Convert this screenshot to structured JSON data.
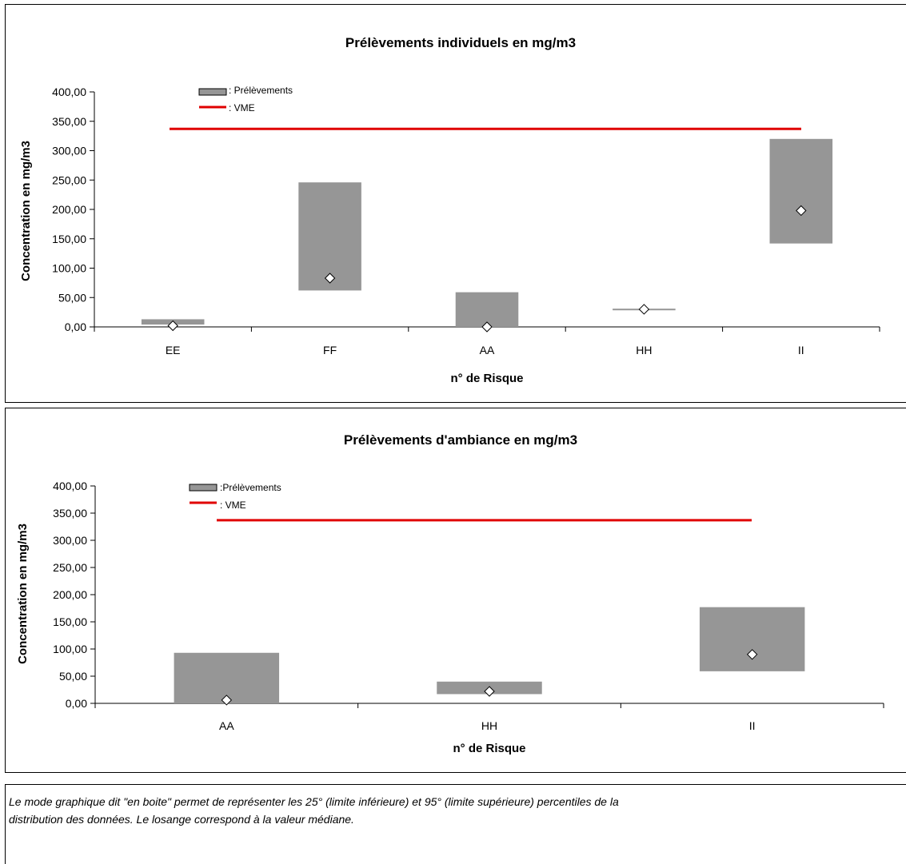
{
  "chart_data": [
    {
      "type": "box",
      "title": "Prélèvements individuels en mg/m3",
      "ylabel": "Concentration en mg/m3",
      "xlabel": "n° de Risque",
      "ylim": [
        0,
        400
      ],
      "yticks": [
        "0,00",
        "50,00",
        "100,00",
        "150,00",
        "200,00",
        "250,00",
        "300,00",
        "350,00",
        "400,00"
      ],
      "categories": [
        "EE",
        "FF",
        "AA",
        "HH",
        "II"
      ],
      "series": [
        {
          "name": ": Prélèvements",
          "low": [
            4,
            62,
            0,
            31,
            142
          ],
          "high": [
            13,
            246,
            59,
            31,
            320
          ],
          "median": [
            2,
            83,
            0,
            30,
            198
          ]
        }
      ],
      "reference": {
        "name": ": VME",
        "value": 337
      },
      "legend": "top-left",
      "colors": {
        "box": "#969696",
        "vme": "#e00000"
      }
    },
    {
      "type": "box",
      "title": "Prélèvements d'ambiance en mg/m3",
      "ylabel": "Concentration en mg/m3",
      "xlabel": "n° de Risque",
      "ylim": [
        0,
        400
      ],
      "yticks": [
        "0,00",
        "50,00",
        "100,00",
        "150,00",
        "200,00",
        "250,00",
        "300,00",
        "350,00",
        "400,00"
      ],
      "categories": [
        "AA",
        "HH",
        "II"
      ],
      "series": [
        {
          "name": ":Prélèvements",
          "low": [
            0,
            17,
            59
          ],
          "high": [
            93,
            40,
            177
          ],
          "median": [
            6,
            22,
            90
          ]
        }
      ],
      "reference": {
        "name": ": VME",
        "value": 337
      },
      "legend": "top-left",
      "colors": {
        "box": "#969696",
        "vme": "#e00000"
      }
    }
  ],
  "note": {
    "line1": "Le mode graphique dit \"en boite\" permet de représenter les 25° (limite inférieure) et 95° (limite supérieure) percentiles de la",
    "line2": "distribution des données. Le losange correspond à la valeur médiane."
  }
}
